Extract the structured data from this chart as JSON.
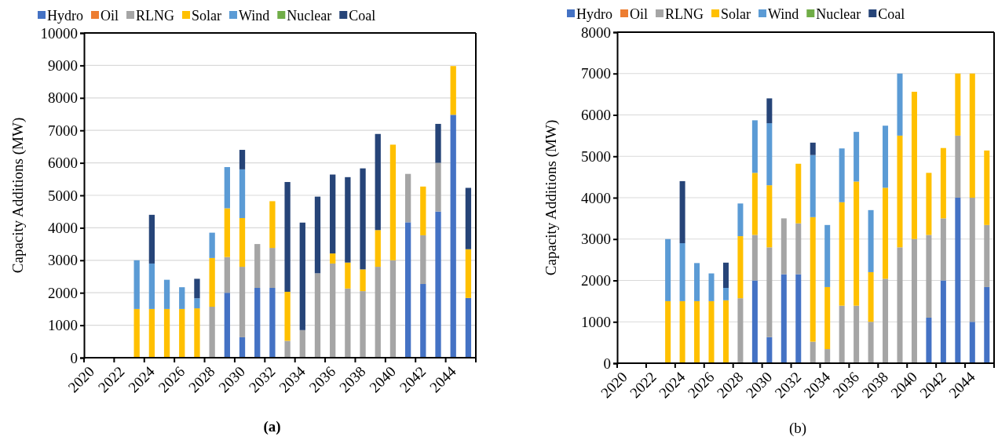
{
  "chart_data": [
    {
      "type": "bar",
      "title": "(a)",
      "ylabel": "Capacity Additions (MW)",
      "stacked": true,
      "grid": "y",
      "legend": "top",
      "categories": [
        "2020",
        null,
        "2022",
        null,
        "2024",
        null,
        "2026",
        null,
        "2028",
        null,
        "2030",
        null,
        "2032",
        null,
        "2034",
        null,
        "2036",
        null,
        "2038",
        null,
        "2040",
        null,
        "2042",
        null,
        "2044",
        null
      ],
      "ylim": [
        0,
        10000
      ],
      "yticks": [
        0,
        1000,
        2000,
        3000,
        4000,
        5000,
        6000,
        7000,
        8000,
        9000,
        10000
      ],
      "series": [
        {
          "name": "Hydro",
          "color": "#4472c4",
          "values": [
            null,
            null,
            null,
            0,
            0,
            0,
            0,
            0,
            0,
            2000,
            630,
            2150,
            2150,
            0,
            0,
            0,
            0,
            0,
            0,
            0,
            0,
            4170,
            2270,
            4500,
            7480,
            1840
          ]
        },
        {
          "name": "Oil",
          "color": "#ed7d31",
          "values": [
            null,
            null,
            null,
            0,
            0,
            0,
            0,
            0,
            0,
            0,
            0,
            0,
            0,
            0,
            0,
            0,
            0,
            0,
            0,
            0,
            0,
            0,
            0,
            0,
            0,
            0
          ]
        },
        {
          "name": "RLNG",
          "color": "#a5a5a5",
          "values": [
            null,
            null,
            null,
            0,
            0,
            0,
            0,
            0,
            1570,
            1100,
            2170,
            1350,
            1230,
            520,
            850,
            2600,
            2900,
            2130,
            2050,
            2800,
            3000,
            1490,
            1500,
            1500,
            0,
            0
          ]
        },
        {
          "name": "Solar",
          "color": "#ffc000",
          "values": [
            null,
            null,
            null,
            1500,
            1500,
            1500,
            1500,
            1520,
            1500,
            1500,
            1500,
            0,
            1440,
            1510,
            0,
            0,
            310,
            800,
            670,
            1130,
            3560,
            0,
            1500,
            0,
            1500,
            1500
          ]
        },
        {
          "name": "Wind",
          "color": "#5b9bd5",
          "values": [
            null,
            null,
            null,
            1500,
            1400,
            900,
            670,
            310,
            780,
            1270,
            1500,
            0,
            0,
            0,
            0,
            0,
            0,
            0,
            0,
            0,
            0,
            0,
            0,
            0,
            0,
            0
          ]
        },
        {
          "name": "Nuclear",
          "color": "#70ad47",
          "values": [
            null,
            null,
            null,
            0,
            0,
            0,
            0,
            0,
            0,
            0,
            0,
            0,
            0,
            0,
            0,
            0,
            0,
            0,
            0,
            0,
            0,
            0,
            0,
            0,
            0,
            0
          ]
        },
        {
          "name": "Coal",
          "color": "#264478",
          "values": [
            null,
            null,
            null,
            0,
            1500,
            0,
            0,
            600,
            0,
            0,
            600,
            0,
            0,
            3380,
            3310,
            2360,
            2430,
            2630,
            3110,
            2960,
            0,
            0,
            0,
            1200,
            0,
            1890
          ]
        }
      ]
    },
    {
      "type": "bar",
      "title": "(b)",
      "ylabel": "Capacity Additions (MW)",
      "stacked": true,
      "grid": "y",
      "legend": "top",
      "categories": [
        "2020",
        null,
        "2022",
        null,
        "2024",
        null,
        "2026",
        null,
        "2028",
        null,
        "2030",
        null,
        "2032",
        null,
        "2034",
        null,
        "2036",
        null,
        "2038",
        null,
        "2040",
        null,
        "2042",
        null,
        "2044",
        null
      ],
      "ylim": [
        0,
        8000
      ],
      "yticks": [
        0,
        1000,
        2000,
        3000,
        4000,
        5000,
        6000,
        7000,
        8000
      ],
      "series": [
        {
          "name": "Hydro",
          "color": "#4472c4",
          "values": [
            null,
            null,
            null,
            0,
            0,
            0,
            0,
            0,
            0,
            2000,
            630,
            2150,
            2150,
            0,
            0,
            0,
            0,
            0,
            0,
            0,
            0,
            1100,
            2000,
            4000,
            1000,
            1840
          ]
        },
        {
          "name": "Oil",
          "color": "#ed7d31",
          "values": [
            null,
            null,
            null,
            0,
            0,
            0,
            0,
            0,
            0,
            0,
            0,
            0,
            0,
            0,
            0,
            0,
            0,
            0,
            0,
            0,
            0,
            0,
            0,
            0,
            0,
            0
          ]
        },
        {
          "name": "RLNG",
          "color": "#a5a5a5",
          "values": [
            null,
            null,
            null,
            0,
            0,
            0,
            0,
            0,
            1570,
            1100,
            2170,
            1350,
            1230,
            520,
            340,
            1390,
            1390,
            1000,
            2040,
            2800,
            3000,
            2000,
            1500,
            1500,
            3000,
            1500
          ]
        },
        {
          "name": "Solar",
          "color": "#ffc000",
          "values": [
            null,
            null,
            null,
            1500,
            1500,
            1500,
            1500,
            1520,
            1500,
            1500,
            1500,
            0,
            1440,
            3010,
            1500,
            2500,
            3000,
            1200,
            2200,
            2700,
            3560,
            1500,
            1700,
            1500,
            3000,
            1800
          ]
        },
        {
          "name": "Wind",
          "color": "#5b9bd5",
          "values": [
            null,
            null,
            null,
            1500,
            1400,
            920,
            670,
            300,
            790,
            1270,
            1500,
            0,
            0,
            1500,
            1500,
            1300,
            1200,
            1500,
            1500,
            1500,
            0,
            0,
            0,
            0,
            0,
            0
          ]
        },
        {
          "name": "Nuclear",
          "color": "#70ad47",
          "values": [
            null,
            null,
            null,
            0,
            0,
            0,
            0,
            0,
            0,
            0,
            0,
            0,
            0,
            0,
            0,
            0,
            0,
            0,
            0,
            0,
            0,
            0,
            0,
            0,
            0,
            0
          ]
        },
        {
          "name": "Coal",
          "color": "#264478",
          "values": [
            null,
            null,
            null,
            0,
            1500,
            0,
            0,
            610,
            0,
            0,
            600,
            0,
            0,
            300,
            0,
            0,
            0,
            0,
            0,
            0,
            0,
            0,
            0,
            0,
            0,
            0
          ]
        }
      ]
    }
  ]
}
